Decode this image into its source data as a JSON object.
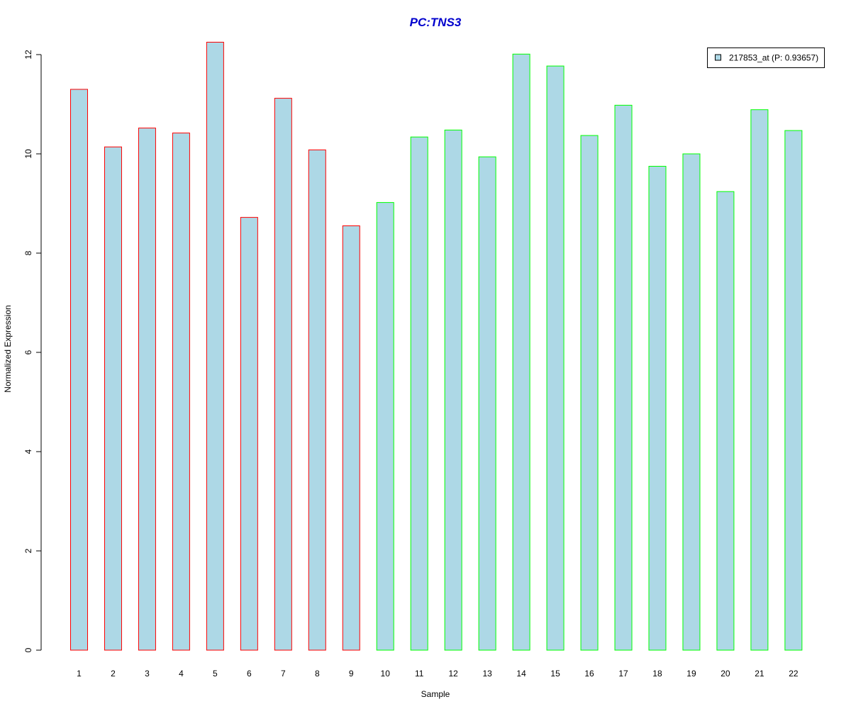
{
  "chart_data": {
    "type": "bar",
    "title": "PC:TNS3",
    "xlabel": "Sample",
    "ylabel": "Normalized Expression",
    "categories": [
      "1",
      "2",
      "3",
      "4",
      "5",
      "6",
      "7",
      "8",
      "9",
      "10",
      "11",
      "12",
      "13",
      "14",
      "15",
      "16",
      "17",
      "18",
      "19",
      "20",
      "21",
      "22"
    ],
    "values": [
      11.3,
      10.14,
      10.52,
      10.42,
      12.25,
      8.72,
      11.12,
      10.08,
      8.55,
      9.02,
      10.34,
      10.48,
      9.94,
      12.01,
      11.77,
      10.37,
      10.98,
      9.75,
      10.0,
      9.24,
      10.89,
      10.47
    ],
    "groups": [
      "A",
      "A",
      "A",
      "A",
      "A",
      "A",
      "A",
      "A",
      "A",
      "B",
      "B",
      "B",
      "B",
      "B",
      "B",
      "B",
      "B",
      "B",
      "B",
      "B",
      "B",
      "B"
    ],
    "ylim": [
      0,
      12
    ],
    "yticks": [
      0,
      2,
      4,
      6,
      8,
      10,
      12
    ],
    "grid": false,
    "legend_position": "top-right",
    "legend": [
      {
        "label": "217853_at (P: 0.93657)",
        "color": "#add8e6"
      }
    ],
    "colors": {
      "bar_fill": "#add8e6",
      "border_group_a": "#ff0000",
      "border_group_b": "#00ff00",
      "title": "#0000cd",
      "axis": "#000000"
    }
  }
}
